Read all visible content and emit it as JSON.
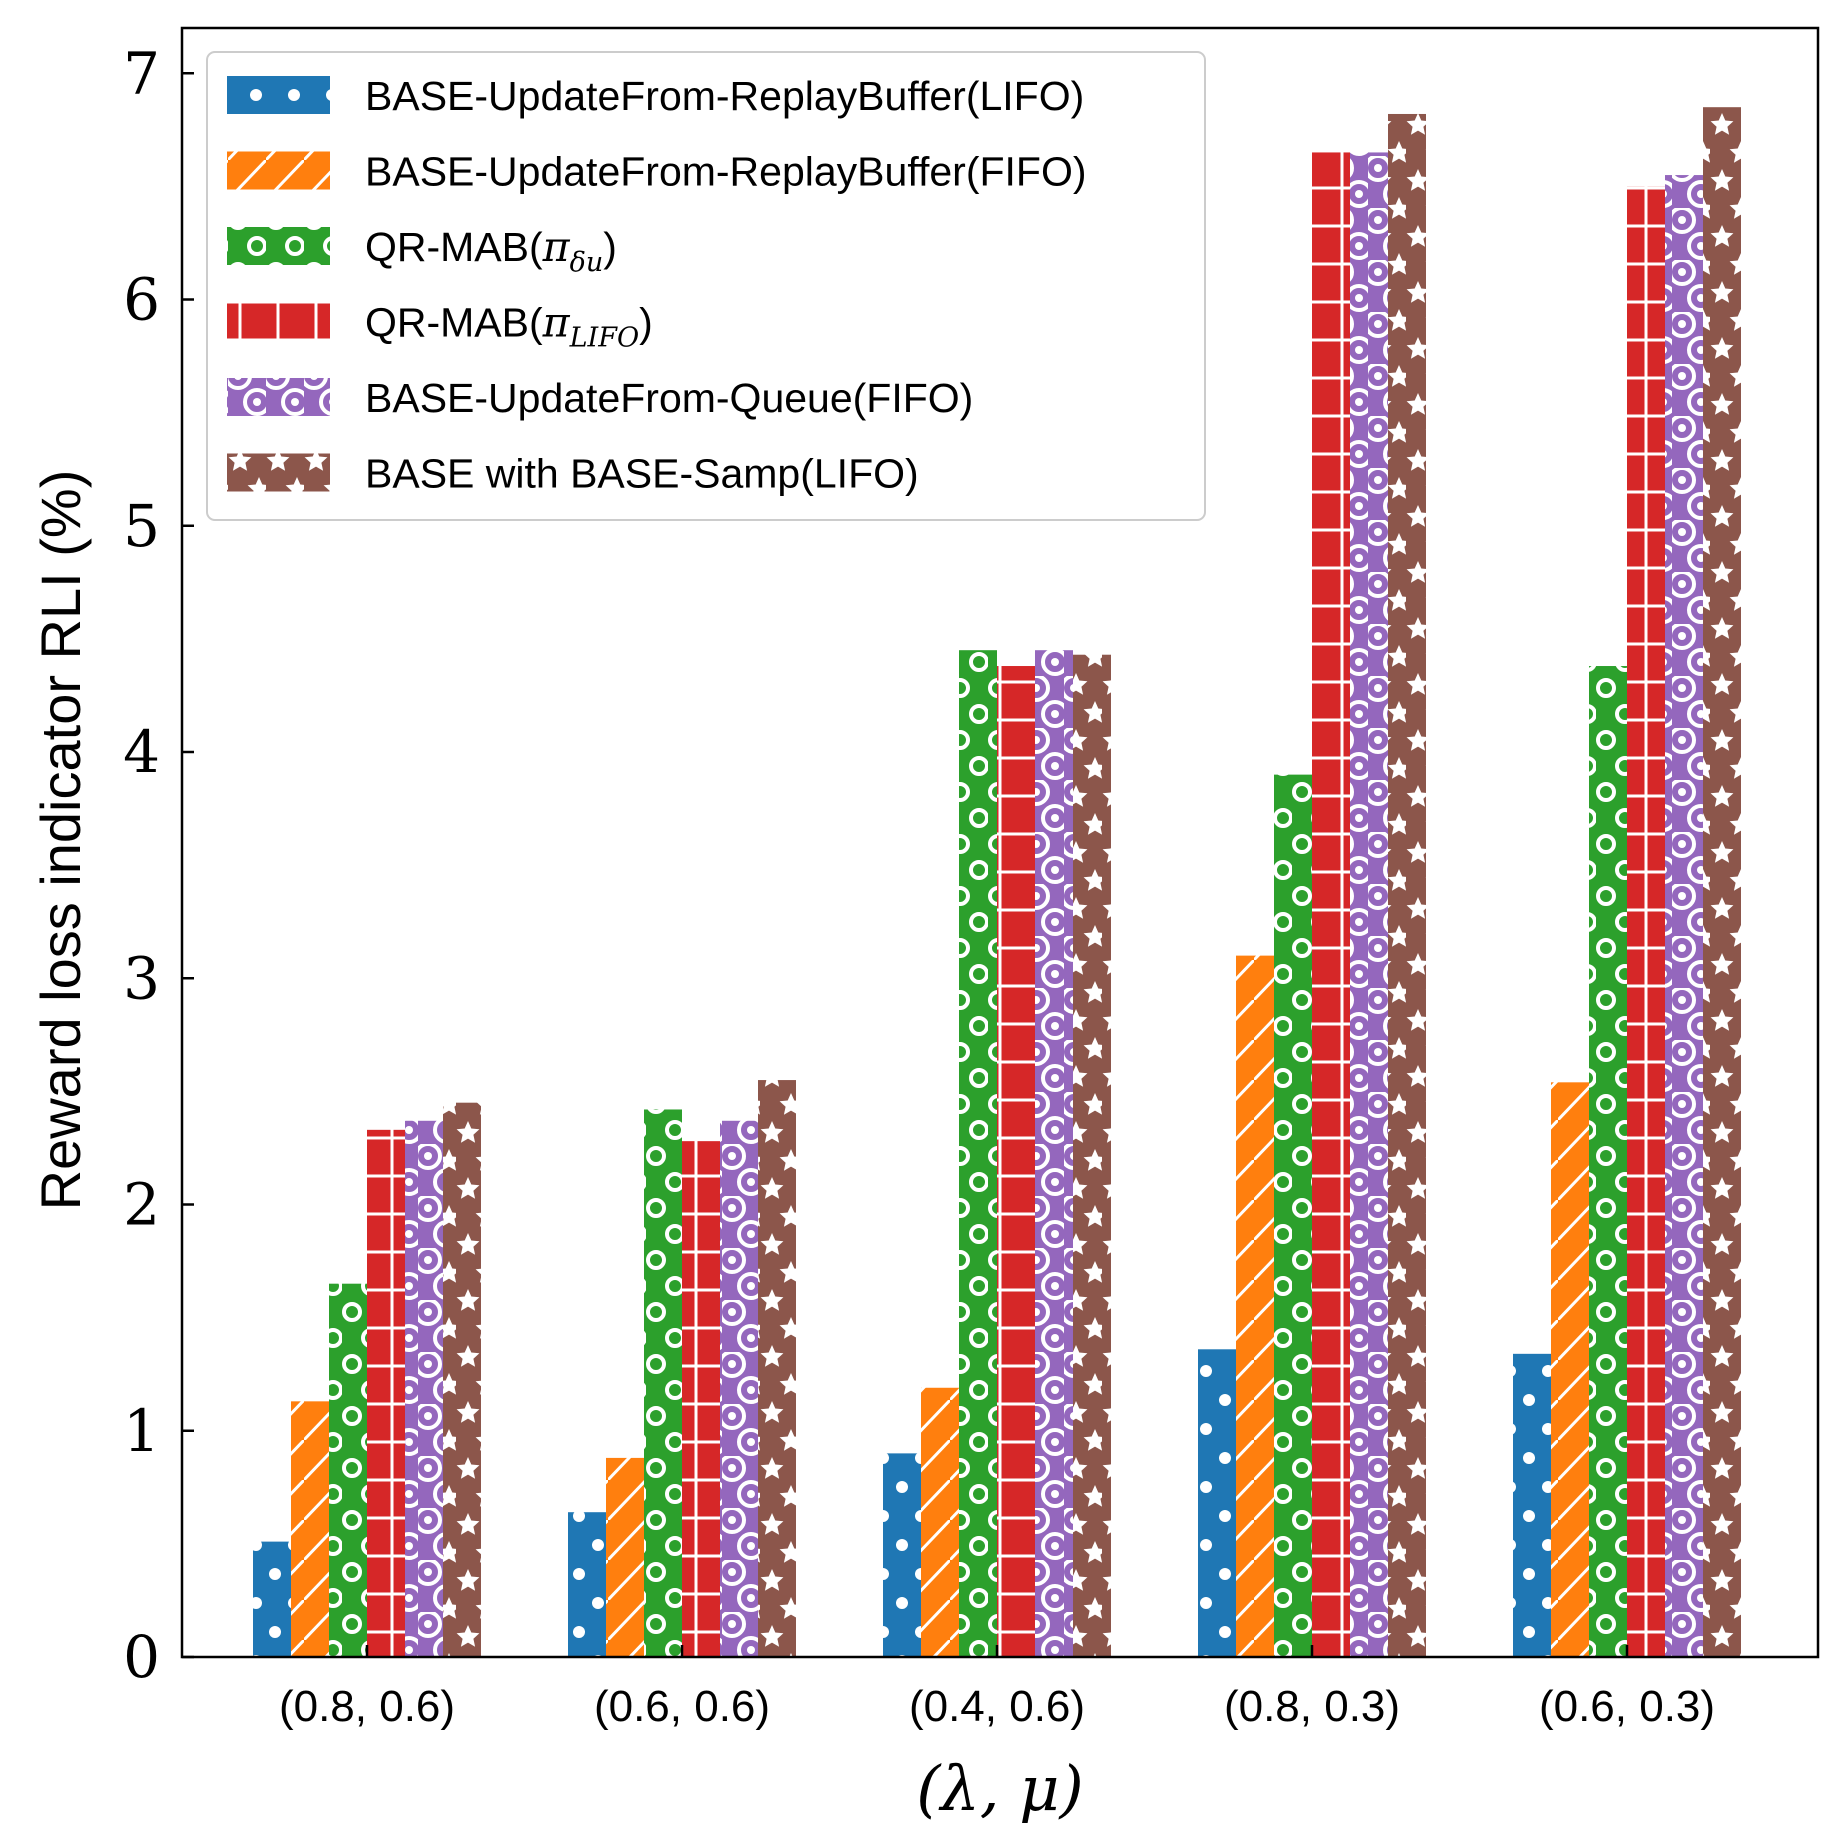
{
  "chart_data": {
    "type": "bar",
    "title": "",
    "xlabel": "(λ, μ)",
    "ylabel": "Reward loss indicator RLI (%)",
    "ylim": [
      0,
      7.2
    ],
    "yticks": [
      "0",
      "1",
      "2",
      "3",
      "4",
      "5",
      "6",
      "7"
    ],
    "categories": [
      "(0.8, 0.6)",
      "(0.6, 0.6)",
      "(0.4, 0.6)",
      "(0.8, 0.3)",
      "(0.6, 0.3)"
    ],
    "legend_position": "top-left",
    "series": [
      {
        "name": "BASE-UpdateFrom-ReplayBuffer(LIFO)",
        "color": "#1f77b4",
        "pattern": "dots",
        "values": [
          0.51,
          0.64,
          0.9,
          1.36,
          1.34
        ]
      },
      {
        "name": "BASE-UpdateFrom-ReplayBuffer(FIFO)",
        "color": "#ff7f0e",
        "pattern": "slash",
        "values": [
          1.13,
          0.88,
          1.19,
          3.1,
          2.54
        ]
      },
      {
        "name": "QR-MAB(π_δu)",
        "name_main": "QR-MAB(",
        "name_sym": "π",
        "name_sub": "δu",
        "name_close": ")",
        "color": "#2ca02c",
        "pattern": "small-rings",
        "values": [
          1.65,
          2.42,
          4.45,
          3.9,
          4.38
        ]
      },
      {
        "name": "QR-MAB(π_LIFO)",
        "name_main": "QR-MAB(",
        "name_sym": "π",
        "name_sub": "LIFO",
        "name_close": ")",
        "color": "#d62728",
        "pattern": "grid",
        "values": [
          2.33,
          2.28,
          4.38,
          6.65,
          6.5
        ]
      },
      {
        "name": "BASE-UpdateFrom-Queue(FIFO)",
        "color": "#9467bd",
        "pattern": "rings",
        "values": [
          2.37,
          2.37,
          4.45,
          6.65,
          6.55
        ]
      },
      {
        "name": "BASE with BASE-Samp(LIFO)",
        "color": "#8c564b",
        "pattern": "stars",
        "values": [
          2.45,
          2.55,
          4.43,
          6.82,
          6.85
        ]
      }
    ]
  }
}
